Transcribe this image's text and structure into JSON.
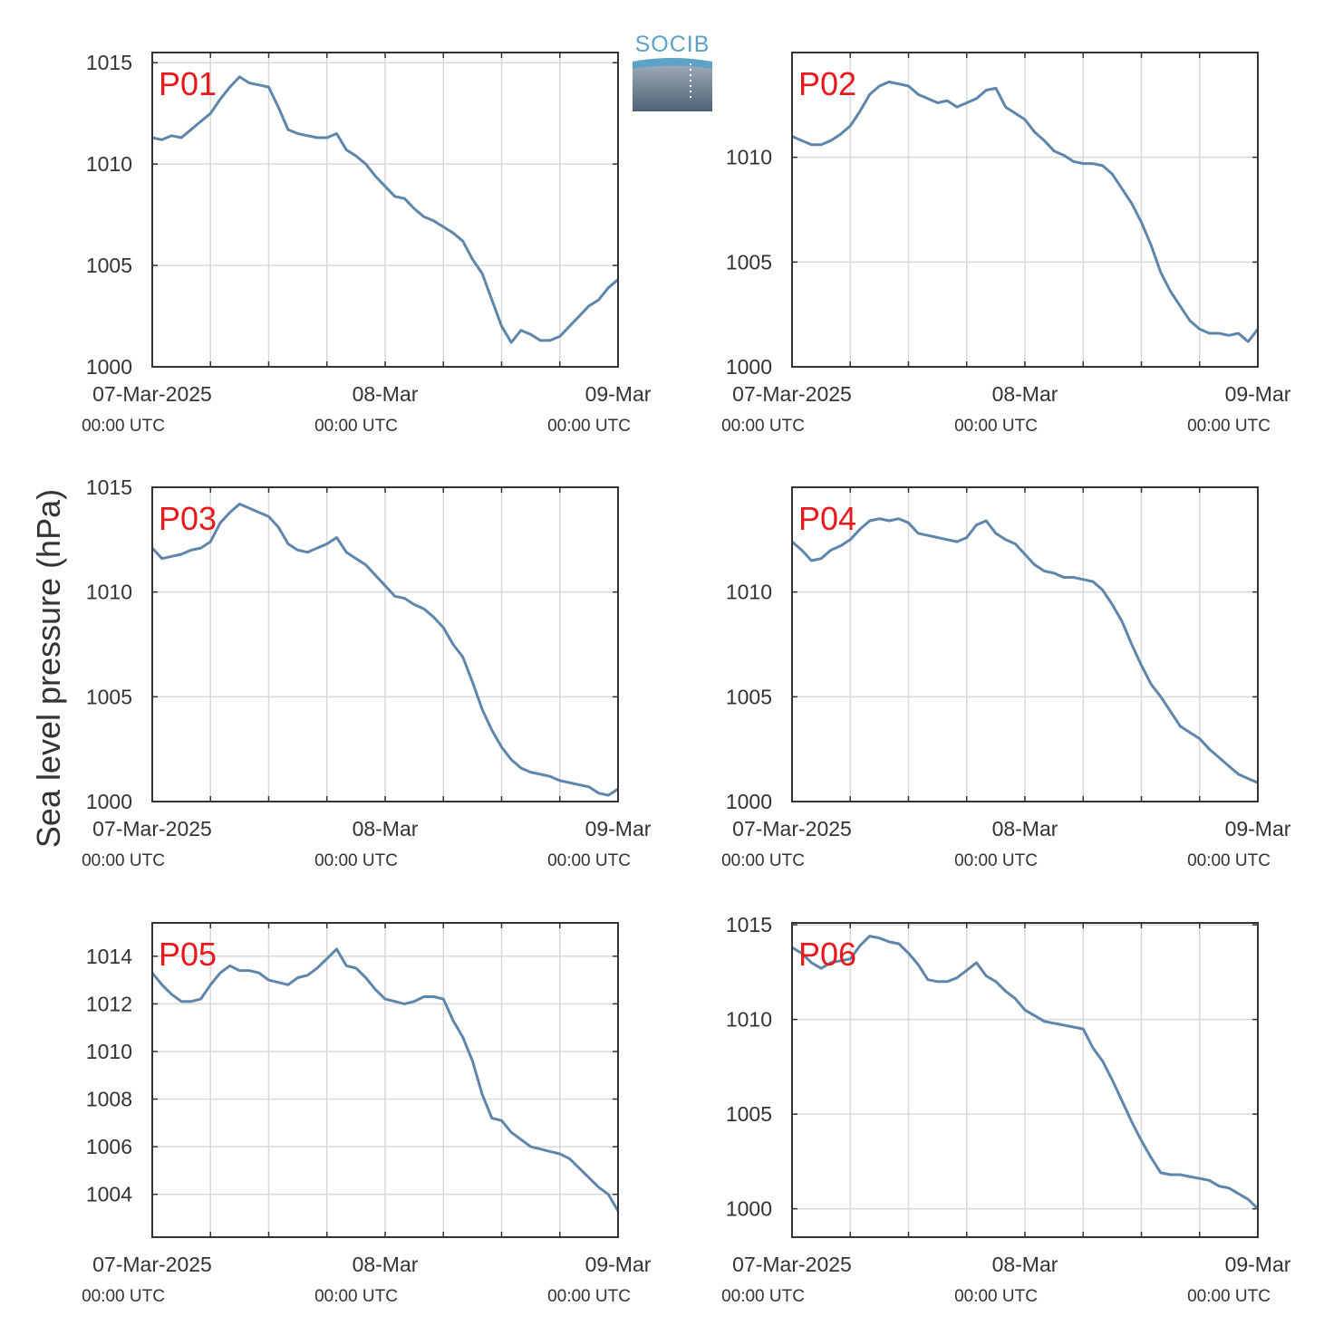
{
  "y_axis_label": "Sea level pressure (hPa)",
  "logo": {
    "text": "SOCIB"
  },
  "x_axis": {
    "ticks": [
      {
        "date": "07-Mar-2025",
        "time": "00:00 UTC"
      },
      {
        "date": "08-Mar",
        "time": "00:00 UTC"
      },
      {
        "date": "09-Mar",
        "time": "00:00 UTC"
      }
    ],
    "range_hours": [
      0,
      48
    ],
    "grid_every_hours": 6
  },
  "colors": {
    "line": "#5f85ab",
    "label": "#e8191c",
    "axis": "#333333",
    "grid": "#d9d9d9"
  },
  "chart_data": [
    {
      "type": "line",
      "title": "P01",
      "ylim": [
        1000,
        1015.5
      ],
      "yticks": [
        1000,
        1005,
        1010,
        1015
      ],
      "grid": true,
      "x_hours": [
        0,
        1,
        2,
        3,
        4,
        5,
        6,
        7,
        8,
        9,
        10,
        11,
        12,
        13,
        14,
        15,
        16,
        17,
        18,
        19,
        20,
        21,
        22,
        23,
        24,
        25,
        26,
        27,
        28,
        29,
        30,
        31,
        32,
        33,
        34,
        35,
        36,
        37,
        38,
        39,
        40,
        41,
        42,
        43,
        44,
        45,
        46,
        47,
        48
      ],
      "y": [
        1011.3,
        1011.2,
        1011.4,
        1011.3,
        1011.7,
        1012.1,
        1012.5,
        1013.2,
        1013.8,
        1014.3,
        1014.0,
        1013.9,
        1013.8,
        1012.8,
        1011.7,
        1011.5,
        1011.4,
        1011.3,
        1011.3,
        1011.5,
        1010.7,
        1010.4,
        1010.0,
        1009.4,
        1008.9,
        1008.4,
        1008.3,
        1007.8,
        1007.4,
        1007.2,
        1006.9,
        1006.6,
        1006.2,
        1005.3,
        1004.6,
        1003.3,
        1002.0,
        1001.2,
        1001.8,
        1001.6,
        1001.3,
        1001.3,
        1001.5,
        1002.0,
        1002.5,
        1003.0,
        1003.3,
        1003.9,
        1004.3
      ]
    },
    {
      "type": "line",
      "title": "P02",
      "ylim": [
        1000,
        1015
      ],
      "yticks": [
        1000,
        1005,
        1010
      ],
      "grid": true,
      "x_hours": [
        0,
        1,
        2,
        3,
        4,
        5,
        6,
        7,
        8,
        9,
        10,
        11,
        12,
        13,
        14,
        15,
        16,
        17,
        18,
        19,
        20,
        21,
        22,
        23,
        24,
        25,
        26,
        27,
        28,
        29,
        30,
        31,
        32,
        33,
        34,
        35,
        36,
        37,
        38,
        39,
        40,
        41,
        42,
        43,
        44,
        45,
        46,
        47,
        48
      ],
      "y": [
        1011.0,
        1010.8,
        1010.6,
        1010.6,
        1010.8,
        1011.1,
        1011.5,
        1012.2,
        1013.0,
        1013.4,
        1013.6,
        1013.5,
        1013.4,
        1013.0,
        1012.8,
        1012.6,
        1012.7,
        1012.4,
        1012.6,
        1012.8,
        1013.2,
        1013.3,
        1012.4,
        1012.1,
        1011.8,
        1011.2,
        1010.8,
        1010.3,
        1010.1,
        1009.8,
        1009.7,
        1009.7,
        1009.6,
        1009.2,
        1008.5,
        1007.8,
        1006.9,
        1005.8,
        1004.5,
        1003.6,
        1002.9,
        1002.2,
        1001.8,
        1001.6,
        1001.6,
        1001.5,
        1001.6,
        1001.2,
        1001.8
      ]
    },
    {
      "type": "line",
      "title": "P03",
      "ylim": [
        1000,
        1015
      ],
      "yticks": [
        1000,
        1005,
        1010,
        1015
      ],
      "grid": true,
      "x_hours": [
        0,
        1,
        2,
        3,
        4,
        5,
        6,
        7,
        8,
        9,
        10,
        11,
        12,
        13,
        14,
        15,
        16,
        17,
        18,
        19,
        20,
        21,
        22,
        23,
        24,
        25,
        26,
        27,
        28,
        29,
        30,
        31,
        32,
        33,
        34,
        35,
        36,
        37,
        38,
        39,
        40,
        41,
        42,
        43,
        44,
        45,
        46,
        47,
        48
      ],
      "y": [
        1012.1,
        1011.6,
        1011.7,
        1011.8,
        1012.0,
        1012.1,
        1012.4,
        1013.3,
        1013.8,
        1014.2,
        1014.0,
        1013.8,
        1013.6,
        1013.1,
        1012.3,
        1012.0,
        1011.9,
        1012.1,
        1012.3,
        1012.6,
        1011.9,
        1011.6,
        1011.3,
        1010.8,
        1010.3,
        1009.8,
        1009.7,
        1009.4,
        1009.2,
        1008.8,
        1008.3,
        1007.5,
        1006.9,
        1005.7,
        1004.4,
        1003.4,
        1002.6,
        1002.0,
        1001.6,
        1001.4,
        1001.3,
        1001.2,
        1001.0,
        1000.9,
        1000.8,
        1000.7,
        1000.4,
        1000.3,
        1000.6
      ]
    },
    {
      "type": "line",
      "title": "P04",
      "ylim": [
        1000,
        1015
      ],
      "yticks": [
        1000,
        1005,
        1010
      ],
      "grid": true,
      "x_hours": [
        0,
        1,
        2,
        3,
        4,
        5,
        6,
        7,
        8,
        9,
        10,
        11,
        12,
        13,
        14,
        15,
        16,
        17,
        18,
        19,
        20,
        21,
        22,
        23,
        24,
        25,
        26,
        27,
        28,
        29,
        30,
        31,
        32,
        33,
        34,
        35,
        36,
        37,
        38,
        39,
        40,
        41,
        42,
        43,
        44,
        45,
        46,
        47,
        48
      ],
      "y": [
        1012.4,
        1012.0,
        1011.5,
        1011.6,
        1012.0,
        1012.2,
        1012.5,
        1013.0,
        1013.4,
        1013.5,
        1013.4,
        1013.5,
        1013.3,
        1012.8,
        1012.7,
        1012.6,
        1012.5,
        1012.4,
        1012.6,
        1013.2,
        1013.4,
        1012.8,
        1012.5,
        1012.3,
        1011.8,
        1011.3,
        1011.0,
        1010.9,
        1010.7,
        1010.7,
        1010.6,
        1010.5,
        1010.1,
        1009.4,
        1008.6,
        1007.5,
        1006.5,
        1005.6,
        1005.0,
        1004.3,
        1003.6,
        1003.3,
        1003.0,
        1002.5,
        1002.1,
        1001.7,
        1001.3,
        1001.1,
        1000.9
      ]
    },
    {
      "type": "line",
      "title": "P05",
      "ylim": [
        1002.2,
        1015.4
      ],
      "yticks": [
        1004,
        1006,
        1008,
        1010,
        1012,
        1014
      ],
      "grid": true,
      "x_hours": [
        0,
        1,
        2,
        3,
        4,
        5,
        6,
        7,
        8,
        9,
        10,
        11,
        12,
        13,
        14,
        15,
        16,
        17,
        18,
        19,
        20,
        21,
        22,
        23,
        24,
        25,
        26,
        27,
        28,
        29,
        30,
        31,
        32,
        33,
        34,
        35,
        36,
        37,
        38,
        39,
        40,
        41,
        42,
        43,
        44,
        45,
        46,
        47,
        48
      ],
      "y": [
        1013.3,
        1012.8,
        1012.4,
        1012.1,
        1012.1,
        1012.2,
        1012.8,
        1013.3,
        1013.6,
        1013.4,
        1013.4,
        1013.3,
        1013.0,
        1012.9,
        1012.8,
        1013.1,
        1013.2,
        1013.5,
        1013.9,
        1014.3,
        1013.6,
        1013.5,
        1013.1,
        1012.6,
        1012.2,
        1012.1,
        1012.0,
        1012.1,
        1012.3,
        1012.3,
        1012.2,
        1011.3,
        1010.6,
        1009.6,
        1008.2,
        1007.2,
        1007.1,
        1006.6,
        1006.3,
        1006.0,
        1005.9,
        1005.8,
        1005.7,
        1005.5,
        1005.1,
        1004.7,
        1004.3,
        1004.0,
        1003.3
      ]
    },
    {
      "type": "line",
      "title": "P06",
      "ylim": [
        998.5,
        1015.1
      ],
      "yticks": [
        1000,
        1005,
        1010,
        1015
      ],
      "grid": true,
      "x_hours": [
        0,
        1,
        2,
        3,
        4,
        5,
        6,
        7,
        8,
        9,
        10,
        11,
        12,
        13,
        14,
        15,
        16,
        17,
        18,
        19,
        20,
        21,
        22,
        23,
        24,
        25,
        26,
        27,
        28,
        29,
        30,
        31,
        32,
        33,
        34,
        35,
        36,
        37,
        38,
        39,
        40,
        41,
        42,
        43,
        44,
        45,
        46,
        47,
        48
      ],
      "y": [
        1013.8,
        1013.5,
        1013.0,
        1012.7,
        1013.0,
        1013.1,
        1013.2,
        1013.9,
        1014.4,
        1014.3,
        1014.1,
        1014.0,
        1013.5,
        1012.9,
        1012.1,
        1012.0,
        1012.0,
        1012.2,
        1012.6,
        1013.0,
        1012.3,
        1012.0,
        1011.5,
        1011.1,
        1010.5,
        1010.2,
        1009.9,
        1009.8,
        1009.7,
        1009.6,
        1009.5,
        1008.5,
        1007.8,
        1006.8,
        1005.7,
        1004.6,
        1003.6,
        1002.7,
        1001.9,
        1001.8,
        1001.8,
        1001.7,
        1001.6,
        1001.5,
        1001.2,
        1001.1,
        1000.8,
        1000.5,
        1000.0
      ]
    }
  ]
}
